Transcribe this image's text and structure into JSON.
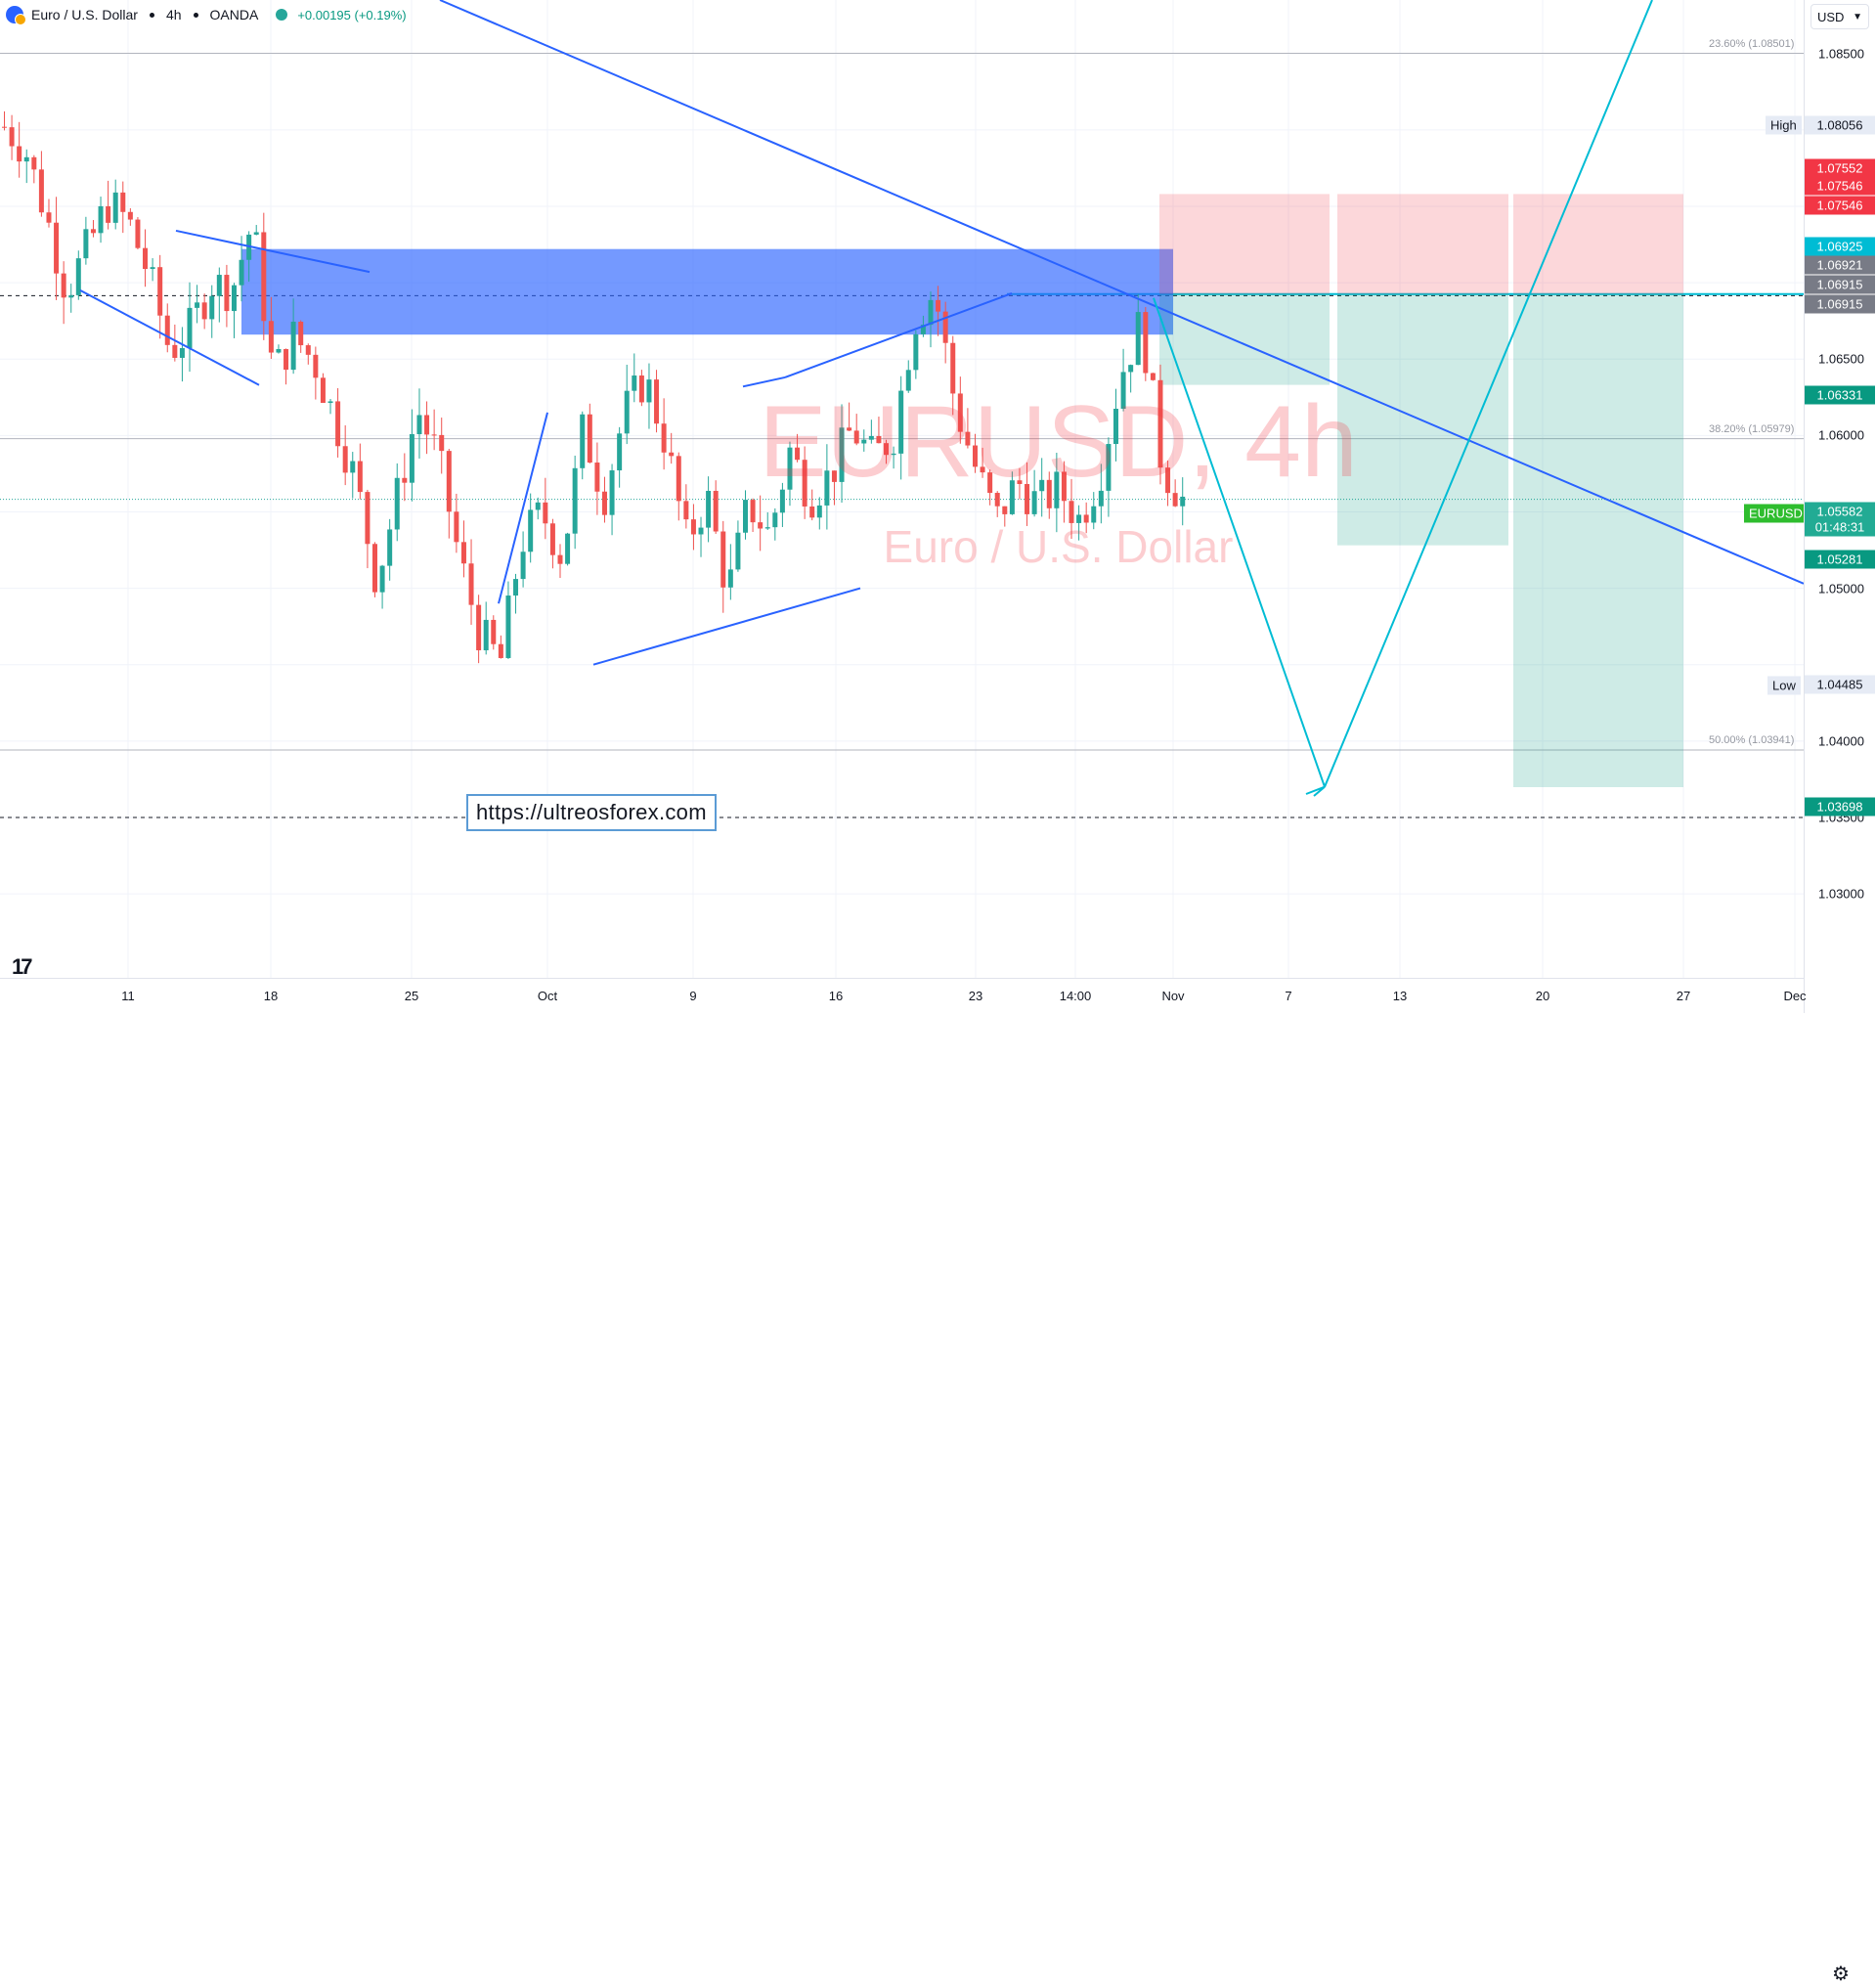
{
  "legend": {
    "symbol": "Euro / U.S. Dollar",
    "interval": "4h",
    "broker": "OANDA",
    "change": "+0.00195 (+0.19%)"
  },
  "watermark": {
    "title": "EURUSD, 4h",
    "subtitle": "Euro / U.S. Dollar"
  },
  "url_text": "https://ultreosforex.com",
  "currency_button": "USD",
  "fib_levels": [
    {
      "label": "23.60% (1.08501)",
      "price": 1.08501
    },
    {
      "label": "38.20% (1.05979)",
      "price": 1.05979
    },
    {
      "label": "50.00% (1.03941)",
      "price": 1.03941
    }
  ],
  "price_ticks": [
    "1.08500",
    "1.06500",
    "1.06000",
    "1.05000",
    "1.04000",
    "1.03500",
    "1.03000"
  ],
  "price_tags": [
    {
      "text": "1.08056",
      "price": 1.08056,
      "bg": "#e6ebf5",
      "fg": "#131722"
    },
    {
      "text": "1.07552",
      "price": 1.07552,
      "bg": "#f23645",
      "fg": "#ffffff"
    },
    {
      "text": "1.07546",
      "price": 1.07546,
      "bg": "#f23645",
      "fg": "#ffffff"
    },
    {
      "text": "1.07546",
      "price": 1.07546,
      "bg": "#f23645",
      "fg": "#ffffff"
    },
    {
      "text": "1.06925",
      "price": 1.06925,
      "bg": "#00bcd4",
      "fg": "#ffffff"
    },
    {
      "text": "1.06921",
      "price": 1.06921,
      "bg": "#787b86",
      "fg": "#ffffff"
    },
    {
      "text": "1.06915",
      "price": 1.06915,
      "bg": "#787b86",
      "fg": "#ffffff"
    },
    {
      "text": "1.06915",
      "price": 1.06915,
      "bg": "#787b86",
      "fg": "#ffffff"
    },
    {
      "text": "1.06331",
      "price": 1.06331,
      "bg": "#089981",
      "fg": "#ffffff"
    },
    {
      "text": "1.05582",
      "price": 1.05582,
      "bg": "#22ab94",
      "fg": "#ffffff"
    },
    {
      "text": "01:48:31",
      "price": 1.05582,
      "bg": "#22ab94",
      "fg": "#ffffff"
    },
    {
      "text": "1.05281",
      "price": 1.05281,
      "bg": "#089981",
      "fg": "#ffffff"
    },
    {
      "text": "1.04485",
      "price": 1.04485,
      "bg": "#e6ebf5",
      "fg": "#131722"
    },
    {
      "text": "1.03698",
      "price": 1.03698,
      "bg": "#089981",
      "fg": "#ffffff"
    }
  ],
  "side_tags": [
    {
      "text": "High",
      "price": 1.08056,
      "bg": "#e6ebf5",
      "fg": "#131722"
    },
    {
      "text": "EURUSD",
      "price": 1.05582,
      "bg": "#2ebd2e",
      "fg": "#ffffff"
    },
    {
      "text": "Low",
      "price": 1.04485,
      "bg": "#e6ebf5",
      "fg": "#131722"
    }
  ],
  "time_ticks": [
    "11",
    "18",
    "25",
    "Oct",
    "9",
    "16",
    "23",
    "14:00",
    "Nov",
    "7",
    "13",
    "20",
    "27",
    "Dec"
  ],
  "chart_data": {
    "type": "candlestick",
    "symbol": "EURUSD",
    "interval": "4h",
    "high": 1.08056,
    "low": 1.04485,
    "last": 1.05582,
    "ylim": [
      1.0245,
      1.0885
    ],
    "time_axis_labels": [
      "11",
      "18",
      "25",
      "Oct",
      "9",
      "16",
      "23",
      "14:00",
      "Nov",
      "7",
      "13",
      "20",
      "27",
      "Dec"
    ],
    "swing_path": [
      1.0802,
      1.0788,
      1.0745,
      1.0695,
      1.0722,
      1.0752,
      1.074,
      1.0705,
      1.0655,
      1.067,
      1.07,
      1.0695,
      1.074,
      1.064,
      1.0665,
      1.0648,
      1.061,
      1.057,
      1.0505,
      1.056,
      1.0617,
      1.0585,
      1.052,
      1.047,
      1.0452,
      1.053,
      1.055,
      1.052,
      1.0605,
      1.056,
      1.0615,
      1.0638,
      1.0595,
      1.053,
      1.056,
      1.0497,
      1.0555,
      1.0535,
      1.059,
      1.056,
      1.0575,
      1.0605,
      1.0585,
      1.06,
      1.0675,
      1.0695,
      1.062,
      1.0578,
      1.0545,
      1.057,
      1.0555,
      1.0565,
      1.0545,
      1.0575,
      1.064,
      1.0675,
      1.058,
      1.0558
    ]
  }
}
